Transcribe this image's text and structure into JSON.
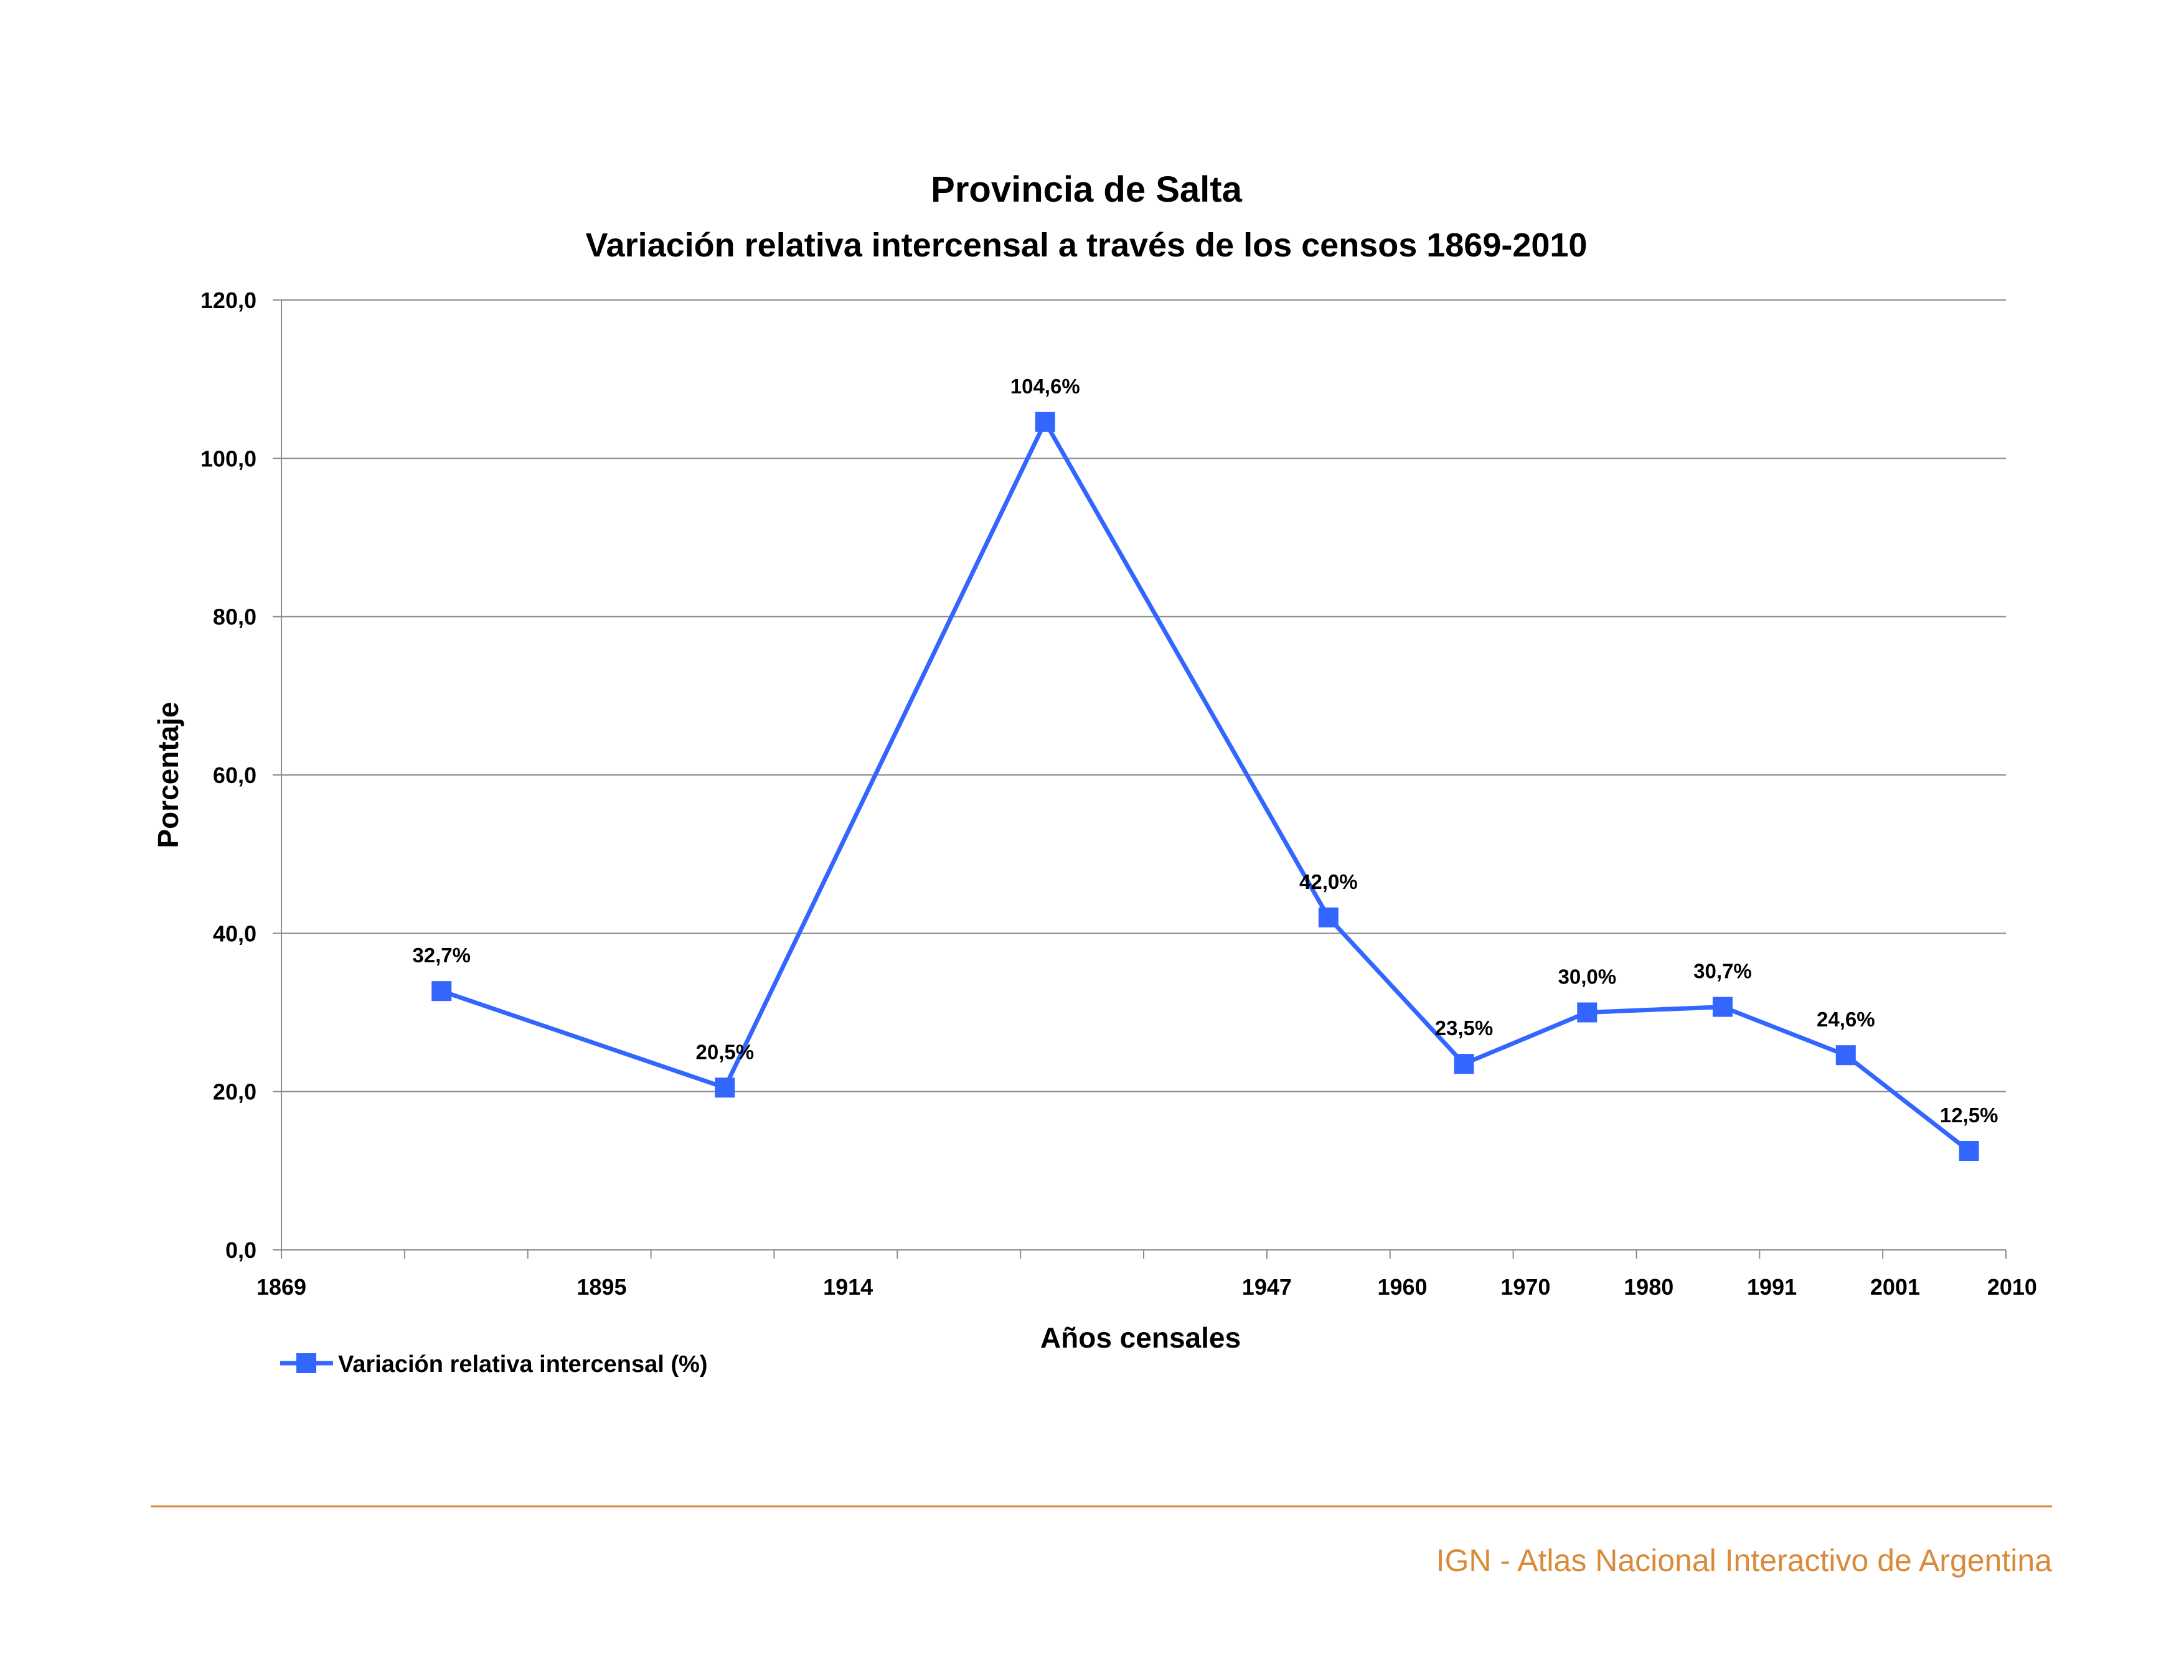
{
  "chart_data": {
    "type": "line",
    "title": "Provincia de Salta",
    "subtitle": "Variación relativa intercensal a través de los censos 1869-2010",
    "xlabel": "Años censales",
    "ylabel": "Porcentaje",
    "ylim": [
      0,
      120
    ],
    "yticks": [
      "0,0",
      "20,0",
      "40,0",
      "60,0",
      "80,0",
      "100,0",
      "120,0"
    ],
    "x_tick_labels": [
      "1869",
      "1895",
      "1914",
      "1947",
      "1960",
      "1970",
      "1980",
      "1991",
      "2001",
      "2010"
    ],
    "grid": true,
    "legend_position": "bottom-left",
    "series": [
      {
        "name": "Variación relativa intercensal (%)",
        "color": "#3366ff",
        "marker": "square",
        "values": [
          32.7,
          20.5,
          104.6,
          42.0,
          23.5,
          30.0,
          30.7,
          24.6,
          12.5
        ],
        "labels": [
          "32,7%",
          "20,5%",
          "104,6%",
          "42,0%",
          "23,5%",
          "30,0%",
          "30,7%",
          "24,6%",
          "12,5%"
        ]
      }
    ]
  },
  "footer": {
    "text": "IGN - Atlas Nacional Interactivo de Argentina",
    "color": "#d98a3a"
  }
}
